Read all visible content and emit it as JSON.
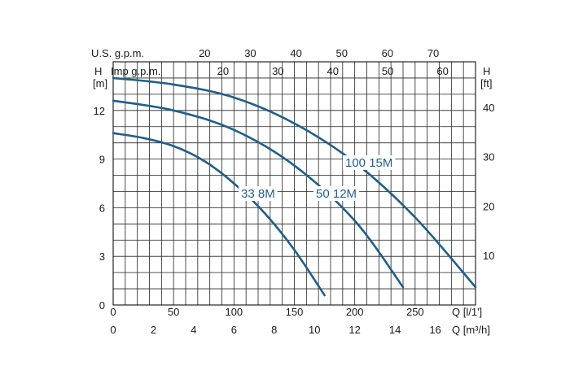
{
  "chart_data": {
    "type": "line",
    "axis_labels": {
      "left_top": "H",
      "left_unit": "[m]",
      "right_top": "H",
      "right_unit": "[ft]",
      "us_gpm": "U.S. g.p.m.",
      "imp_gpm": "Imp g.p.m.",
      "q_lmin": "Q [l/1']",
      "q_m3h": "Q [m³/h]"
    },
    "ticks": {
      "us_gpm": [
        "20",
        "30",
        "40",
        "50",
        "60",
        "70"
      ],
      "imp_gpm": [
        "20",
        "30",
        "40",
        "50",
        "60"
      ],
      "h_m": [
        "0",
        "3",
        "6",
        "9",
        "12"
      ],
      "h_ft": [
        "10",
        "20",
        "30",
        "40"
      ],
      "q_lmin": [
        "0",
        "50",
        "100",
        "150",
        "200",
        "250"
      ],
      "q_m3h": [
        "0",
        "2",
        "4",
        "6",
        "8",
        "10",
        "12",
        "14",
        "16"
      ]
    },
    "xlim": [
      0,
      300
    ],
    "ylim": [
      0,
      15
    ],
    "x_unit": "l/min",
    "y_unit": "m",
    "series": [
      {
        "name": "33 8M",
        "x": [
          0,
          25,
          50,
          75,
          100,
          125,
          150,
          175
        ],
        "y": [
          10.6,
          10.3,
          9.8,
          8.9,
          7.5,
          5.7,
          3.4,
          0.6
        ]
      },
      {
        "name": "50 12M",
        "x": [
          0,
          50,
          100,
          150,
          200,
          240
        ],
        "y": [
          12.6,
          12.0,
          10.8,
          8.6,
          5.2,
          1.1
        ]
      },
      {
        "name": "100 15M",
        "x": [
          0,
          50,
          100,
          150,
          200,
          250,
          300
        ],
        "y": [
          14.0,
          13.6,
          12.8,
          11.2,
          8.8,
          5.4,
          1.1
        ]
      }
    ],
    "colors": {
      "curve": "#1f5f8b",
      "grid": "#222222",
      "text": "#1a1a1a"
    }
  }
}
